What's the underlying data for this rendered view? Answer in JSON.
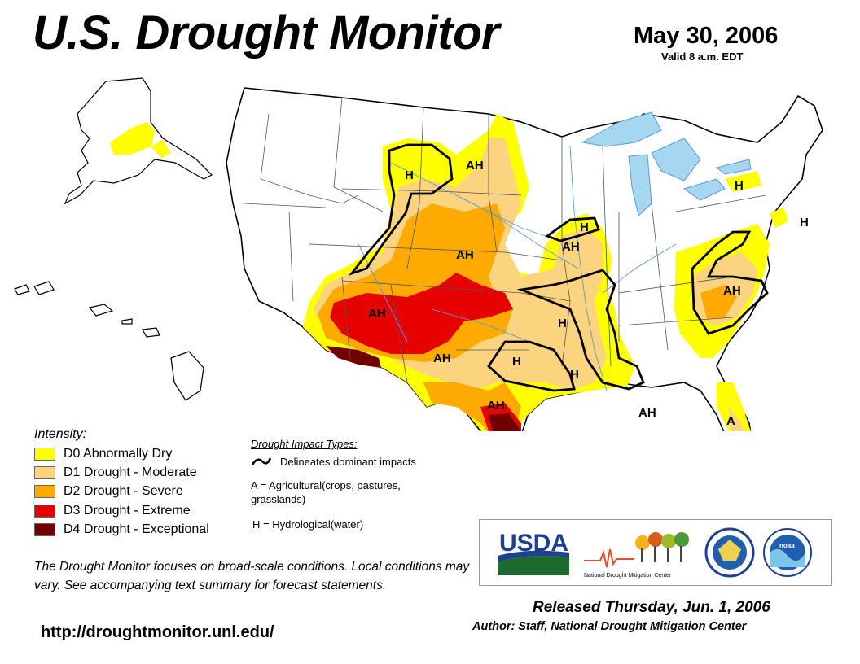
{
  "header": {
    "title": "U.S. Drought Monitor",
    "date": "May 30, 2006",
    "valid": "Valid 8 a.m. EDT"
  },
  "colors": {
    "d0": "#ffff00",
    "d1": "#fcd37f",
    "d2": "#ffaa00",
    "d3": "#e60000",
    "d4": "#730000",
    "water": "#a5d7f0",
    "border": "#000000"
  },
  "legend": {
    "title": "Intensity:",
    "items": [
      {
        "code": "D0",
        "label": "D0 Abnormally Dry",
        "color": "#ffff00"
      },
      {
        "code": "D1",
        "label": "D1 Drought - Moderate",
        "color": "#fcd37f"
      },
      {
        "code": "D2",
        "label": "D2 Drought - Severe",
        "color": "#ffaa00"
      },
      {
        "code": "D3",
        "label": "D3 Drought - Extreme",
        "color": "#e60000"
      },
      {
        "code": "D4",
        "label": "D4 Drought - Exceptional",
        "color": "#730000"
      }
    ]
  },
  "impacts": {
    "title": "Drought Impact Types:",
    "delineates": "Delineates dominant impacts",
    "agricultural_line1": "A = Agricultural(crops, pastures,",
    "agricultural_line2": "grasslands)",
    "hydrological": "H = Hydrological(water)"
  },
  "map_labels": [
    "H",
    "AH",
    "H",
    "AH",
    "AH",
    "AH",
    "H",
    "AH",
    "H",
    "H",
    "AH",
    "AH",
    "H",
    "H",
    "AH",
    "A"
  ],
  "note": "The Drought Monitor focuses on broad-scale conditions. Local conditions may vary. See accompanying text summary for forecast statements.",
  "url": "http://droughtmonitor.unl.edu/",
  "released": "Released Thursday, Jun. 1, 2006",
  "author": "Author: Staff, National Drought Mitigation Center",
  "logos": {
    "usda": "USDA",
    "ndmc": "National Drought Mitigation Center",
    "noaa": "noaa"
  }
}
